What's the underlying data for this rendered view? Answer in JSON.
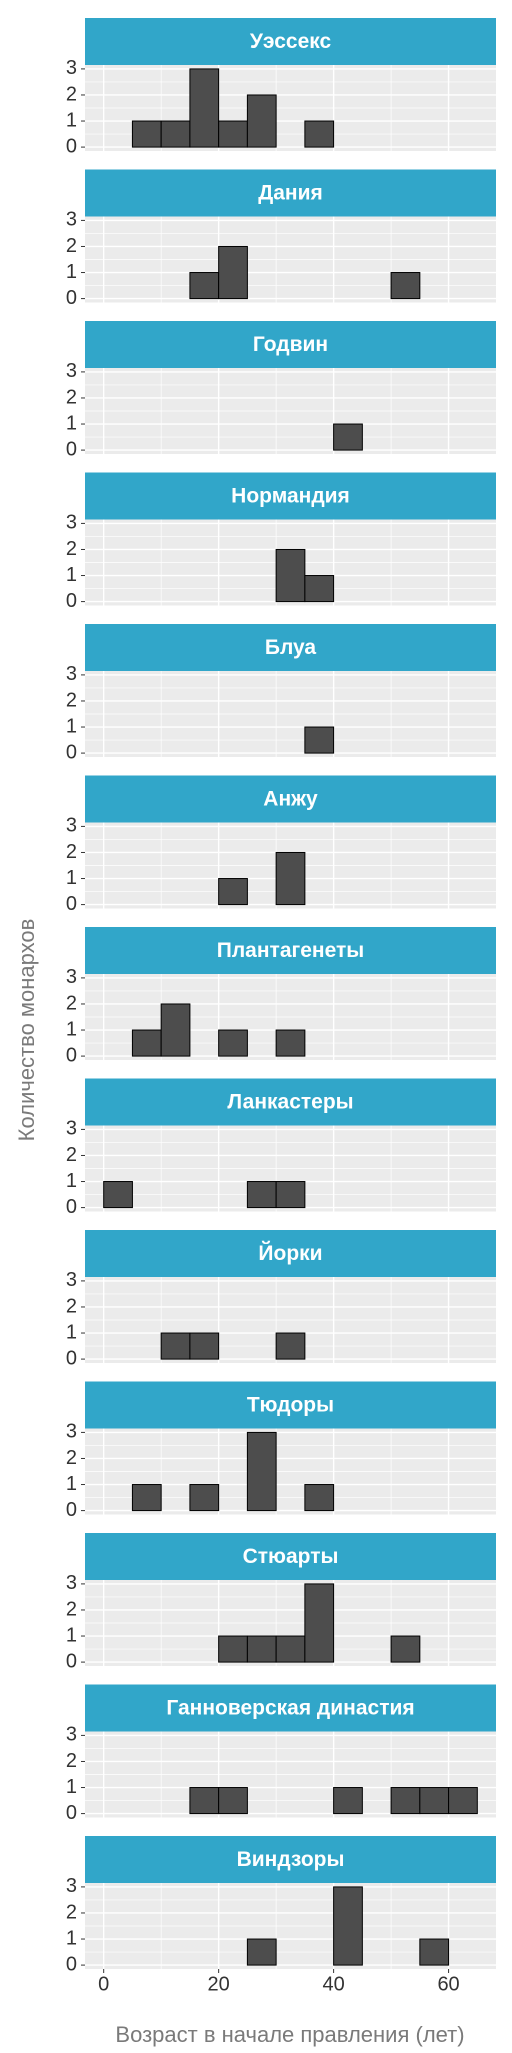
{
  "chart_data": {
    "type": "histogram",
    "x_label": "Возраст в начале правления (лет)",
    "y_label": "Количество монархов",
    "bins": [
      0,
      5,
      10,
      15,
      20,
      25,
      30,
      35,
      40,
      45,
      50,
      55,
      60,
      65
    ],
    "xlim": [
      -3.25,
      68.25
    ],
    "xticks": [
      0,
      20,
      40,
      60
    ],
    "ylim": [
      -0.15,
      3.15
    ],
    "yticks": [
      0,
      1,
      2,
      3
    ],
    "color": "#4d4d4d",
    "strip_color": "#31a6c9",
    "grid": true,
    "facets": [
      {
        "name": "Уэссекс",
        "values": [
          0,
          1,
          1,
          3,
          1,
          2,
          0,
          1,
          0,
          0,
          0,
          0,
          0
        ]
      },
      {
        "name": "Дания",
        "values": [
          0,
          0,
          0,
          1,
          2,
          0,
          0,
          0,
          0,
          0,
          1,
          0,
          0
        ]
      },
      {
        "name": "Годвин",
        "values": [
          0,
          0,
          0,
          0,
          0,
          0,
          0,
          0,
          1,
          0,
          0,
          0,
          0
        ]
      },
      {
        "name": "Нормандия",
        "values": [
          0,
          0,
          0,
          0,
          0,
          0,
          2,
          1,
          0,
          0,
          0,
          0,
          0
        ]
      },
      {
        "name": "Блуа",
        "values": [
          0,
          0,
          0,
          0,
          0,
          0,
          0,
          1,
          0,
          0,
          0,
          0,
          0
        ]
      },
      {
        "name": "Анжу",
        "values": [
          0,
          0,
          0,
          0,
          1,
          0,
          2,
          0,
          0,
          0,
          0,
          0,
          0
        ]
      },
      {
        "name": "Плантагенеты",
        "values": [
          0,
          1,
          2,
          0,
          1,
          0,
          1,
          0,
          0,
          0,
          0,
          0,
          0
        ]
      },
      {
        "name": "Ланкастеры",
        "values": [
          1,
          0,
          0,
          0,
          0,
          1,
          1,
          0,
          0,
          0,
          0,
          0,
          0
        ]
      },
      {
        "name": "Йорки",
        "values": [
          0,
          0,
          1,
          1,
          0,
          0,
          1,
          0,
          0,
          0,
          0,
          0,
          0
        ]
      },
      {
        "name": "Тюдоры",
        "values": [
          0,
          1,
          0,
          1,
          0,
          3,
          0,
          1,
          0,
          0,
          0,
          0,
          0
        ]
      },
      {
        "name": "Стюарты",
        "values": [
          0,
          0,
          0,
          0,
          1,
          1,
          1,
          3,
          0,
          0,
          1,
          0,
          0
        ]
      },
      {
        "name": "Ганноверская династия",
        "values": [
          0,
          0,
          0,
          1,
          1,
          0,
          0,
          0,
          1,
          0,
          1,
          1,
          1
        ]
      },
      {
        "name": "Виндзоры",
        "values": [
          0,
          0,
          0,
          0,
          0,
          1,
          0,
          0,
          3,
          0,
          0,
          1,
          0
        ]
      }
    ]
  }
}
